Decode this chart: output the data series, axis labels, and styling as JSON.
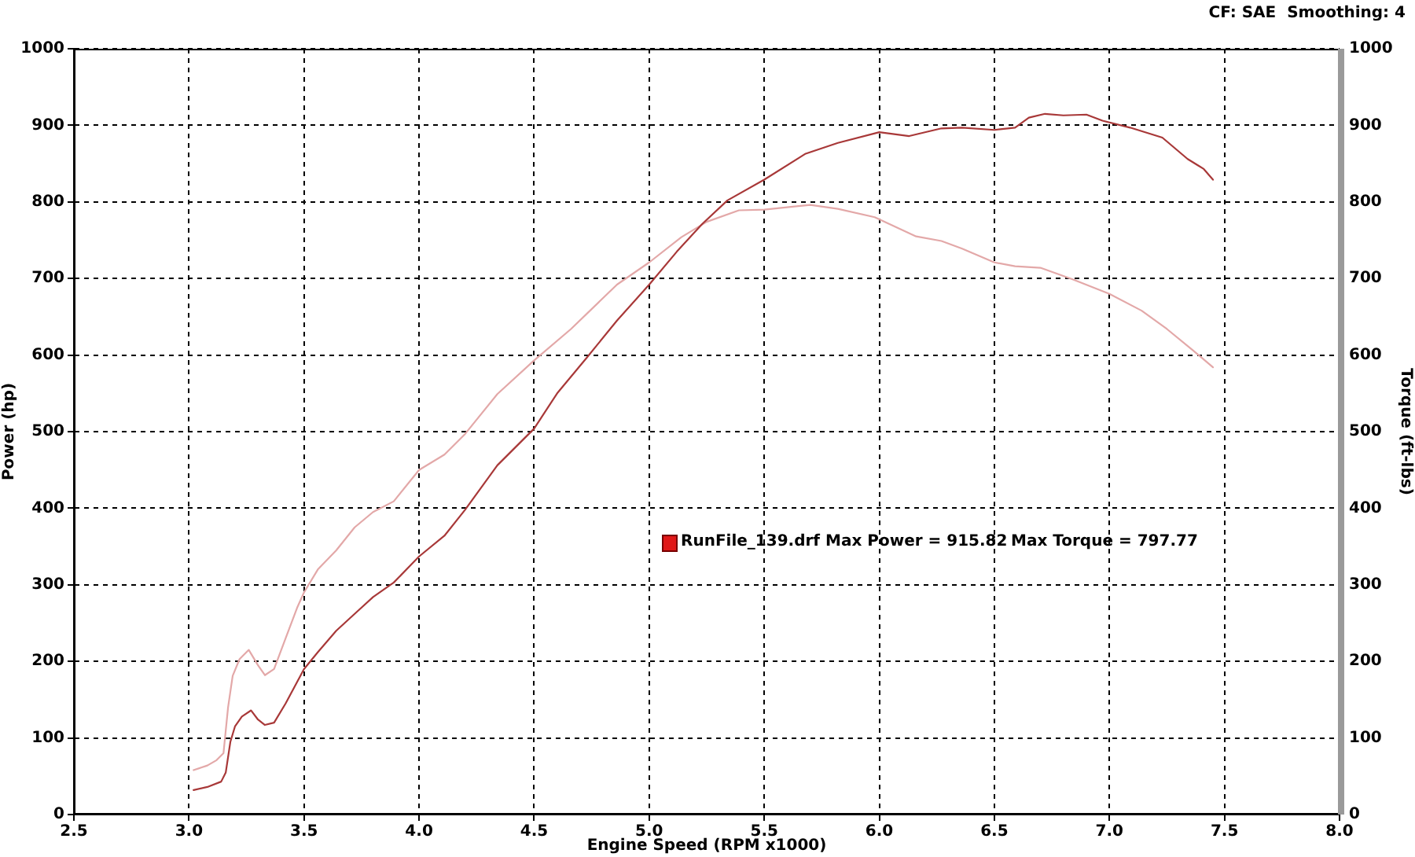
{
  "chart_data": {
    "type": "line",
    "xlabel": "Engine Speed (RPM x1000)",
    "ylabel": "Power (hp)",
    "y2label": "Torque (ft-lbs)",
    "annotations": [
      "CF: SAE  Smoothing: 4",
      "RunFile_139.drf Max Power = 915.82",
      "Max Torque = 797.77"
    ],
    "xlim": [
      2.5,
      8.0
    ],
    "xticks": [
      2.5,
      {
        "value": 3,
        "label": "3.0"
      },
      3.5,
      {
        "value": 4,
        "label": "4.0"
      },
      4.5,
      {
        "value": 5,
        "label": "5.0"
      },
      5.5,
      {
        "value": 6,
        "label": "6.0"
      },
      6.5,
      {
        "value": 7,
        "label": "7.0"
      },
      7.5,
      {
        "value": 8,
        "label": "8.0"
      }
    ],
    "ylim": [
      0,
      1000
    ],
    "yticks": [
      0,
      100,
      200,
      300,
      400,
      500,
      600,
      700,
      800,
      900,
      1000
    ],
    "y2lim": [
      0,
      1000
    ],
    "y2ticks": [
      0,
      100,
      200,
      300,
      400,
      500,
      600,
      700,
      800,
      900,
      1000
    ],
    "grid": true,
    "series": [
      {
        "color": "#a83838",
        "x": [
          3.02,
          3.08,
          3.14,
          3.16,
          3.18,
          3.2,
          3.23,
          3.27,
          3.3,
          3.33,
          3.37,
          3.42,
          3.5,
          3.56,
          3.64,
          3.72,
          3.8,
          3.89,
          4.0,
          4.11,
          4.2,
          4.34,
          4.5,
          4.6,
          4.73,
          4.86,
          5.0,
          5.12,
          5.23,
          5.34,
          5.5,
          5.68,
          5.82,
          6.0,
          6.13,
          6.27,
          6.36,
          6.5,
          6.59,
          6.65,
          6.72,
          6.8,
          6.9,
          6.97,
          7.09,
          7.23,
          7.34,
          7.41,
          7.45
        ],
        "values": [
          32,
          36,
          43,
          55,
          95,
          115,
          128,
          136,
          124,
          117,
          120,
          145,
          190,
          212,
          240,
          262,
          284,
          303,
          337,
          364,
          398,
          456,
          504,
          550,
          597,
          645,
          692,
          735,
          771,
          802,
          829,
          863,
          877,
          891,
          886,
          896,
          897,
          894,
          897,
          910,
          915,
          913,
          914,
          906,
          897,
          884,
          856,
          843,
          829
        ]
      },
      {
        "color": "#e3a8a8",
        "axis": "y2",
        "x": [
          3.02,
          3.08,
          3.12,
          3.15,
          3.17,
          3.19,
          3.22,
          3.26,
          3.3,
          3.33,
          3.37,
          3.42,
          3.47,
          3.5,
          3.56,
          3.64,
          3.72,
          3.8,
          3.89,
          4.0,
          4.11,
          4.2,
          4.34,
          4.5,
          4.66,
          4.86,
          5.0,
          5.14,
          5.25,
          5.39,
          5.5,
          5.7,
          5.82,
          5.98,
          6.16,
          6.27,
          6.36,
          6.5,
          6.59,
          6.7,
          6.84,
          7.0,
          7.14,
          7.25,
          7.36,
          7.45
        ],
        "values": [
          58,
          64,
          71,
          80,
          140,
          181,
          203,
          215,
          195,
          182,
          190,
          230,
          270,
          290,
          320,
          345,
          375,
          395,
          409,
          450,
          470,
          497,
          549,
          593,
          634,
          692,
          721,
          754,
          774,
          789,
          790,
          796,
          791,
          780,
          755,
          749,
          739,
          721,
          716,
          714,
          699,
          680,
          658,
          634,
          607,
          584
        ]
      }
    ]
  }
}
